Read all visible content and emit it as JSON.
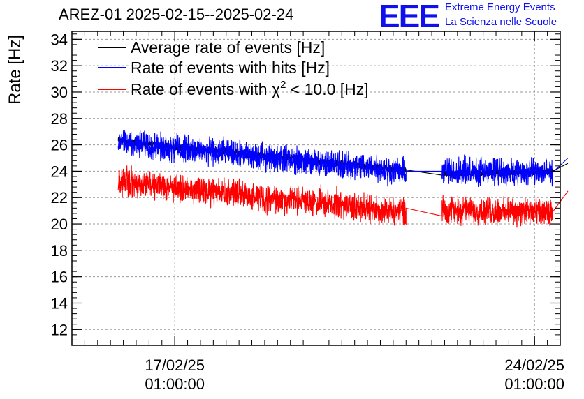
{
  "logo": {
    "mark": "EEE",
    "line1": "Extreme Energy Events",
    "line2": "La Scienza nelle Scuole",
    "color": "#1010ee"
  },
  "chart_data": {
    "type": "line",
    "title": "AREZ-01 2025-02-15--2025-02-24",
    "ylabel": "Rate [Hz]",
    "xlabel": "",
    "ylim": [
      10.8,
      34.6
    ],
    "yticks": [
      12,
      14,
      16,
      18,
      20,
      22,
      24,
      26,
      28,
      30,
      32,
      34
    ],
    "xlim_days": [
      0,
      9.5
    ],
    "xticks": [
      {
        "day": 2.0,
        "date": "17/02/25",
        "time": "01:00:00"
      },
      {
        "day": 9.0,
        "date": "24/02/25",
        "time": "01:00:00"
      }
    ],
    "grid": true,
    "legend_position": "top-left",
    "series": [
      {
        "name": "Average rate of events [Hz]",
        "color": "#000000",
        "segments": [
          {
            "start": 0.9,
            "end": 6.5,
            "y_start": 26.3,
            "y_end": 24.1,
            "noise": 0.2
          },
          {
            "start": 6.5,
            "end": 7.2,
            "y_start": 24.1,
            "y_end": 23.7,
            "noise": 0.0
          },
          {
            "start": 7.2,
            "end": 9.35,
            "y_start": 23.8,
            "y_end": 24.0,
            "noise": 0.2
          },
          {
            "start": 9.35,
            "end": 9.65,
            "y_start": 24.0,
            "y_end": 24.6,
            "noise": 0.0
          }
        ]
      },
      {
        "name": "Rate of events with hits [Hz]",
        "color": "#0000ff",
        "segments": [
          {
            "start": 0.9,
            "end": 6.5,
            "y_start": 26.2,
            "y_end": 24.0,
            "noise": 0.75
          },
          {
            "start": 6.5,
            "end": 7.2,
            "y_start": 24.0,
            "y_end": 24.0,
            "noise": 0.0
          },
          {
            "start": 7.2,
            "end": 9.35,
            "y_start": 24.0,
            "y_end": 23.9,
            "noise": 0.75
          },
          {
            "start": 9.35,
            "end": 9.65,
            "y_start": 23.9,
            "y_end": 25.0,
            "noise": 0.0
          }
        ]
      },
      {
        "name": "Rate of events with χ² < 10.0 [Hz]",
        "label_main": "Rate of events with χ",
        "label_sup": "2",
        "label_tail": " < 10.0 [Hz]",
        "color": "#ff0000",
        "segments": [
          {
            "start": 0.9,
            "end": 6.5,
            "y_start": 23.2,
            "y_end": 20.9,
            "noise": 0.75
          },
          {
            "start": 6.5,
            "end": 7.2,
            "y_start": 21.2,
            "y_end": 20.6,
            "noise": 0.0
          },
          {
            "start": 7.2,
            "end": 9.35,
            "y_start": 21.1,
            "y_end": 20.8,
            "noise": 0.75
          },
          {
            "start": 9.35,
            "end": 9.65,
            "y_start": 20.9,
            "y_end": 22.5,
            "noise": 0.0
          }
        ]
      }
    ]
  }
}
